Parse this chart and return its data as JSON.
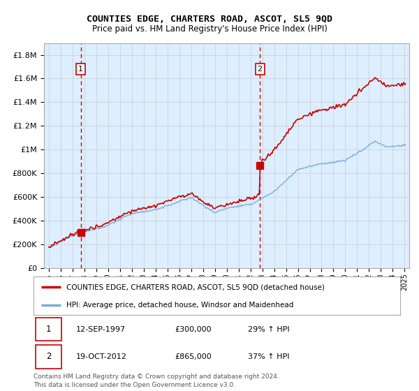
{
  "title": "COUNTIES EDGE, CHARTERS ROAD, ASCOT, SL5 9QD",
  "subtitle": "Price paid vs. HM Land Registry's House Price Index (HPI)",
  "legend_line1": "COUNTIES EDGE, CHARTERS ROAD, ASCOT, SL5 9QD (detached house)",
  "legend_line2": "HPI: Average price, detached house, Windsor and Maidenhead",
  "transaction1_date": "12-SEP-1997",
  "transaction1_price": "£300,000",
  "transaction1_hpi": "29% ↑ HPI",
  "transaction1_year": 1997.7,
  "transaction1_value": 300000,
  "transaction2_date": "19-OCT-2012",
  "transaction2_price": "£865,000",
  "transaction2_hpi": "37% ↑ HPI",
  "transaction2_year": 2012.8,
  "transaction2_value": 865000,
  "footnote": "Contains HM Land Registry data © Crown copyright and database right 2024.\nThis data is licensed under the Open Government Licence v3.0.",
  "red_color": "#cc0000",
  "blue_color": "#7aaddb",
  "bg_color": "#ddeeff",
  "bg_color_between": "#cce4f7",
  "grid_color": "#cccccc",
  "ylim": [
    0,
    1900000
  ],
  "xlim_start": 1994.6,
  "xlim_end": 2025.4
}
